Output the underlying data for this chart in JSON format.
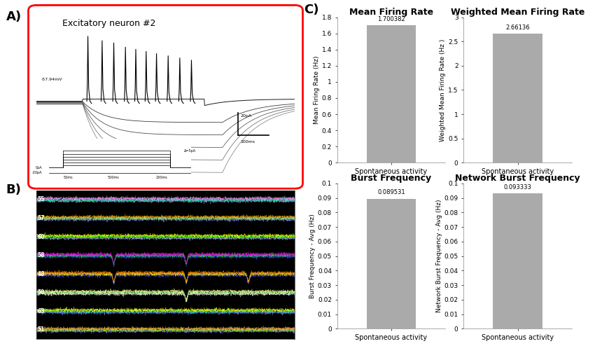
{
  "panel_A_title": "Excitatory neuron #2",
  "panel_A_voltage_label": "-57.94mV",
  "panel_A_scale_bar_text1": "20pA",
  "panel_A_scale_bar_text2": "100ms",
  "panel_B_channels": [
    "55",
    "57",
    "60",
    "58",
    "48",
    "50",
    "63",
    "51"
  ],
  "bar_color": "#aaaaaa",
  "bar_edge_color": "#aaaaaa",
  "plots": [
    {
      "title": "Mean Firing Rate",
      "ylabel": "Mean Firing Rate (Hz)",
      "xlabel": "Spontaneous activity",
      "value": 1.700382,
      "ylim": [
        0,
        1.8
      ],
      "yticks": [
        0,
        0.2,
        0.4,
        0.6,
        0.8,
        1.0,
        1.2,
        1.4,
        1.6,
        1.8
      ],
      "ytick_labels": [
        "0",
        "0.2",
        "0.4",
        "0.6",
        "0.8",
        "1",
        "1.2",
        "1.4",
        "1.6",
        "1.8"
      ],
      "value_label": "1.700382"
    },
    {
      "title": "Weighted Mean Firing Rate",
      "ylabel": "Weighted Mean Firing Rate (Hz )",
      "xlabel": "Spontaneous activity",
      "value": 2.66136,
      "ylim": [
        0,
        3
      ],
      "yticks": [
        0,
        0.5,
        1.0,
        1.5,
        2.0,
        2.5,
        3.0
      ],
      "ytick_labels": [
        "0",
        "0.5",
        "1",
        "1.5",
        "2",
        "2.5",
        "3"
      ],
      "value_label": "2.66136"
    },
    {
      "title": "Burst Frequency",
      "ylabel": "Burst Frequency - Avg (Hz)",
      "xlabel": "Spontaneous activity",
      "value": 0.089531,
      "ylim": [
        0,
        0.1
      ],
      "yticks": [
        0,
        0.01,
        0.02,
        0.03,
        0.04,
        0.05,
        0.06,
        0.07,
        0.08,
        0.09,
        0.1
      ],
      "ytick_labels": [
        "0",
        "0.01",
        "0.02",
        "0.03",
        "0.04",
        "0.05",
        "0.06",
        "0.07",
        "0.08",
        "0.09",
        "0.1"
      ],
      "value_label": "0.089531"
    },
    {
      "title": "Network Burst Frequency",
      "ylabel": "Network Burst Frequency - Avg (Hz)",
      "xlabel": "Spontaneous activity",
      "value": 0.093333,
      "ylim": [
        0,
        0.1
      ],
      "yticks": [
        0,
        0.01,
        0.02,
        0.03,
        0.04,
        0.05,
        0.06,
        0.07,
        0.08,
        0.09,
        0.1
      ],
      "ytick_labels": [
        "0",
        "0.01",
        "0.02",
        "0.03",
        "0.04",
        "0.05",
        "0.06",
        "0.07",
        "0.08",
        "0.09",
        "0.1"
      ],
      "value_label": "0.093333"
    }
  ],
  "panel_labels_fontsize": 13,
  "title_fontsize": 9,
  "ylabel_fontsize": 6.5,
  "xlabel_fontsize": 7,
  "tick_fontsize": 6.5
}
